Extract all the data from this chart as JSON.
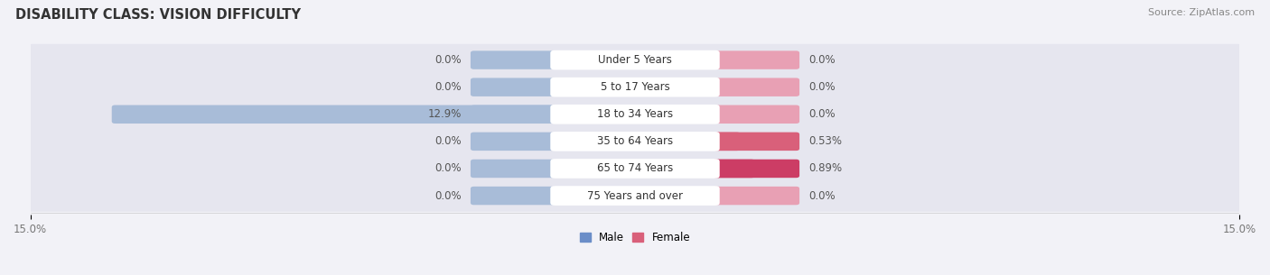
{
  "title": "DISABILITY CLASS: VISION DIFFICULTY",
  "source": "Source: ZipAtlas.com",
  "categories": [
    "Under 5 Years",
    "5 to 17 Years",
    "18 to 34 Years",
    "35 to 64 Years",
    "65 to 74 Years",
    "75 Years and over"
  ],
  "male_values": [
    0.0,
    0.0,
    12.9,
    0.0,
    0.0,
    0.0
  ],
  "female_values": [
    0.0,
    0.0,
    0.0,
    0.53,
    0.89,
    0.0
  ],
  "male_label_values": [
    "0.0%",
    "0.0%",
    "12.9%",
    "0.0%",
    "0.0%",
    "0.0%"
  ],
  "female_label_values": [
    "0.0%",
    "0.0%",
    "0.0%",
    "0.53%",
    "0.89%",
    "0.0%"
  ],
  "male_color": "#a8bcd8",
  "female_color": "#e8a0b4",
  "female_color_35_64": "#d9607a",
  "female_color_65_74": "#d45070",
  "male_color_legend": "#6b8ec8",
  "female_color_legend": "#d9607a",
  "axis_limit": 15.0,
  "background_color": "#f2f2f7",
  "row_bg_color": "#e6e6ef",
  "label_bg_color": "#ffffff",
  "title_fontsize": 10.5,
  "label_fontsize": 8.5,
  "tick_fontsize": 8.5,
  "source_fontsize": 8
}
